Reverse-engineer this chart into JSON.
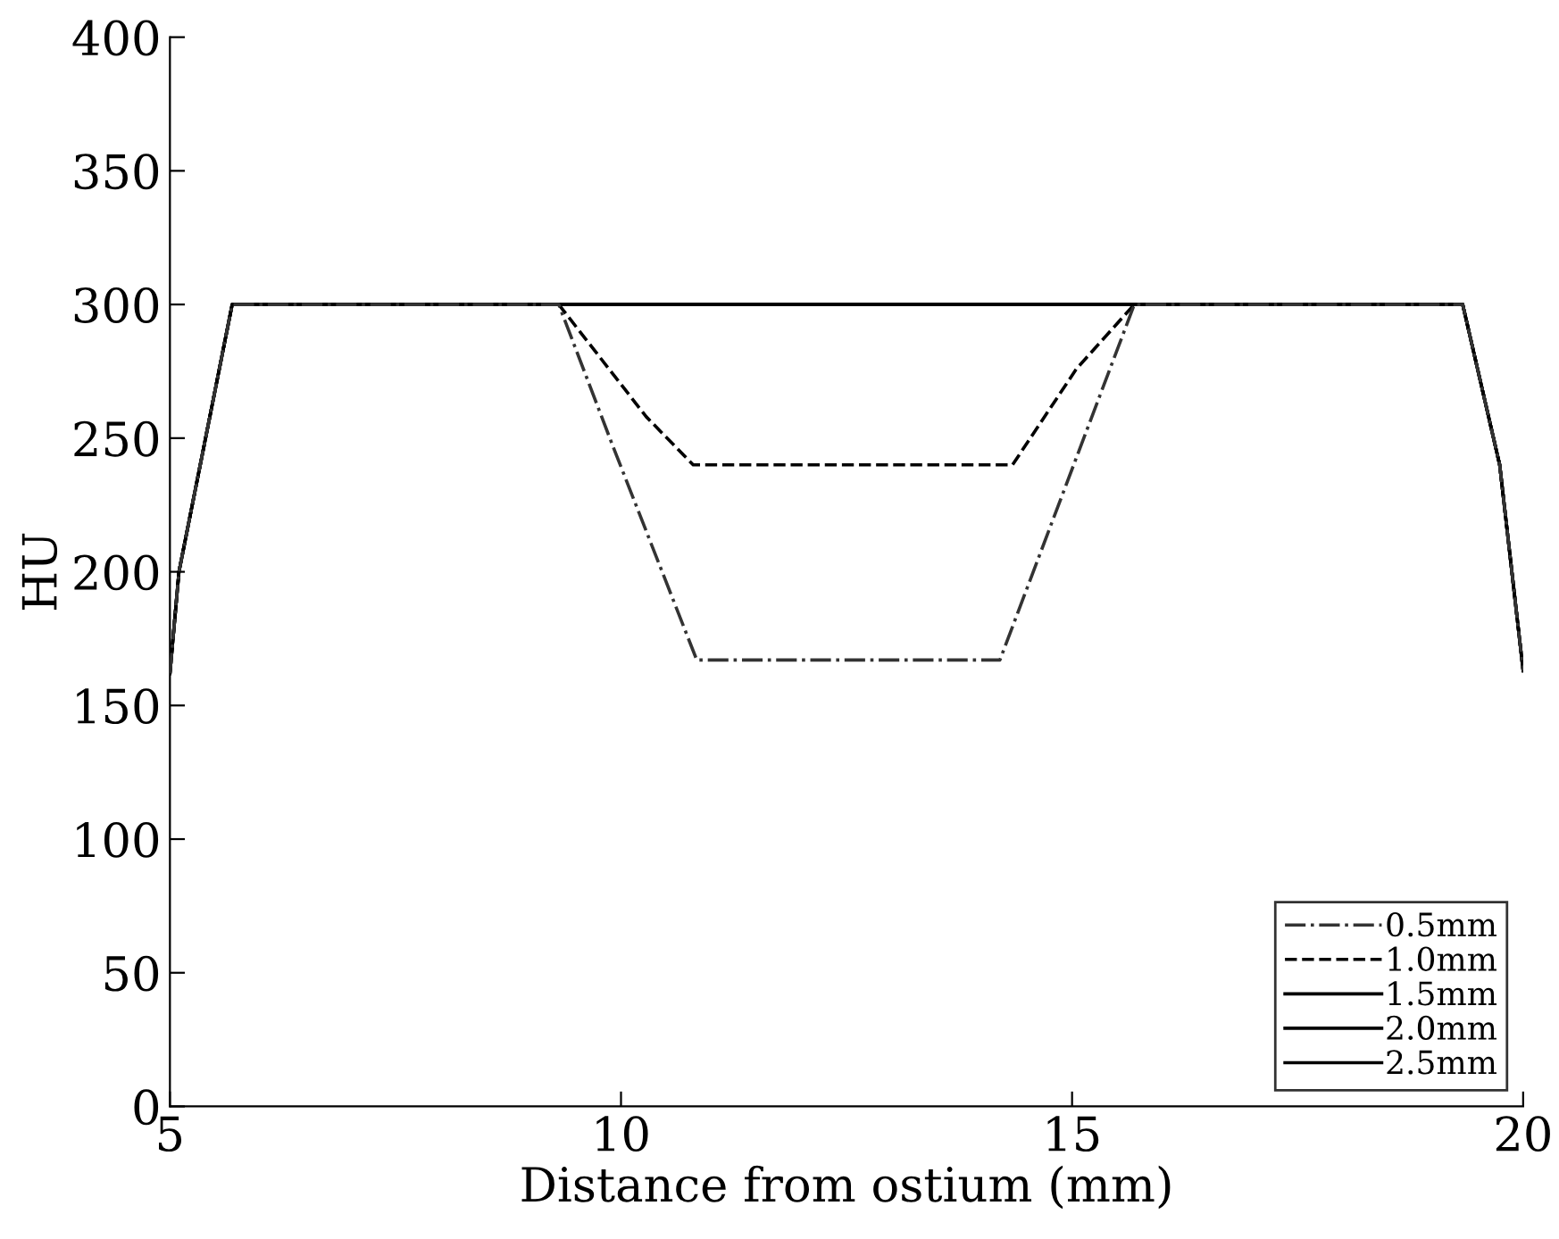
{
  "chart_data": {
    "type": "line",
    "xlabel": "Distance from ostium (mm)",
    "ylabel": "HU",
    "xlim": [
      5,
      20
    ],
    "xticks": [
      5,
      10,
      15,
      20
    ],
    "ylim": [
      0,
      400
    ],
    "yticks": [
      0,
      50,
      100,
      150,
      200,
      250,
      300,
      350,
      400
    ],
    "grid": false,
    "legend": "bottom right",
    "marker": "none",
    "series": [
      {
        "name": "0.5mm",
        "color": "#333333",
        "line_style": "dashdot",
        "x": [
          5,
          5.1,
          5.69,
          9.31,
          9.91,
          10.84,
          14.2,
          15.69,
          19.33,
          19.74,
          20
        ],
        "values": [
          162,
          200,
          300,
          300,
          247,
          167,
          167,
          300,
          300,
          240,
          163
        ]
      },
      {
        "name": "1.0mm",
        "color": "#000000",
        "line_style": "dashed",
        "x": [
          5,
          5.1,
          5.69,
          9.31,
          10.28,
          10.8,
          14.34,
          15.05,
          15.69,
          19.33,
          19.74,
          20
        ],
        "values": [
          162,
          200,
          300,
          300,
          258,
          240,
          240,
          276,
          300,
          300,
          240,
          163
        ]
      },
      {
        "name": "1.5mm",
        "color": "#000000",
        "line_style": "solid",
        "x": [
          5,
          5.1,
          5.69,
          19.33,
          19.74,
          20
        ],
        "values": [
          162,
          200,
          300,
          300,
          240,
          163
        ]
      },
      {
        "name": "2.0mm",
        "color": "#000000",
        "line_style": "solid",
        "x": [
          5,
          5.1,
          5.69,
          19.33,
          19.74,
          20
        ],
        "values": [
          162,
          200,
          300,
          300,
          240,
          163
        ]
      },
      {
        "name": "2.5mm",
        "color": "#000000",
        "line_style": "solid",
        "x": [
          5,
          5.1,
          5.69,
          19.33,
          19.74,
          20
        ],
        "values": [
          162,
          200,
          300,
          300,
          240,
          163
        ]
      }
    ]
  }
}
